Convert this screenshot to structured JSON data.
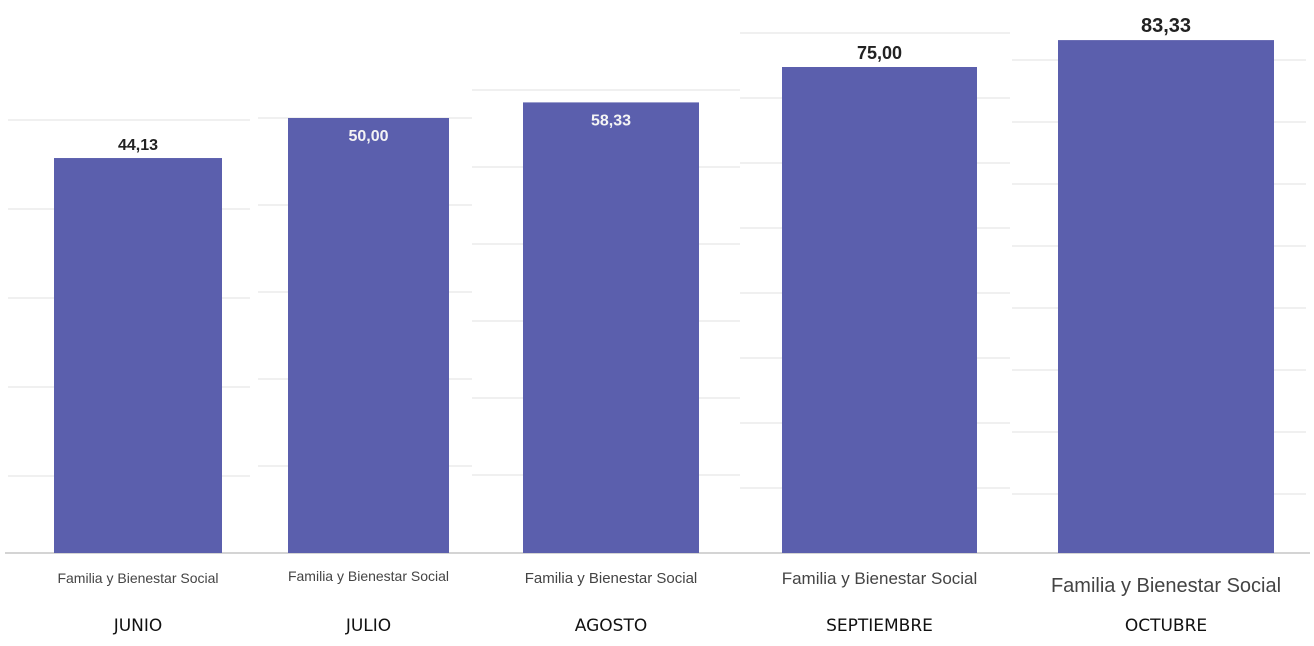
{
  "chart_data": {
    "type": "bar",
    "title": "",
    "xlabel": "",
    "ylabel": "",
    "ylim": [
      0,
      90
    ],
    "grid": true,
    "legend": "none",
    "categories": [
      "JUNIO",
      "JULIO",
      "AGOSTO",
      "SEPTIEMBRE",
      "OCTUBRE"
    ],
    "series": [
      {
        "values": [
          44.13,
          50.0,
          58.33,
          75.0,
          83.33
        ]
      }
    ],
    "value_labels": [
      "44,13",
      "50,00",
      "58,33",
      "75,00",
      "83,33"
    ],
    "category_labels": [
      "Familia y Bienestar Social",
      "Familia y Bienestar Social",
      "Familia y Bienestar Social",
      "Familia y Bienestar Social",
      "Familia y Bienestar Social"
    ],
    "bar_color": "#5b5fad",
    "gridline_color": "#e2e2e2"
  }
}
